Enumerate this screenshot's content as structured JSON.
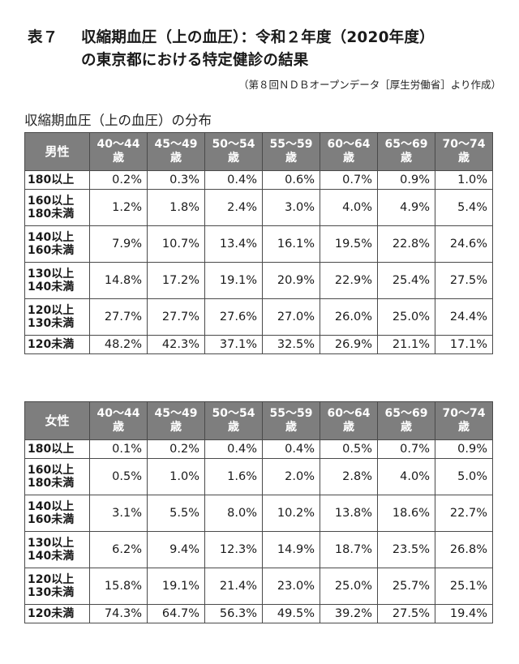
{
  "title": {
    "number": "表７",
    "line1": "収縮期血圧（上の血圧）：令和２年度（2020年度）",
    "line2": "の東京都における特定健診の結果"
  },
  "source": "（第８回ＮＤＢオープンデータ［厚生労働省］より作成）",
  "subtitle": "収縮期血圧（上の血圧）の分布",
  "age_groups": [
    "40～44",
    "45～49",
    "50～54",
    "55～59",
    "60～64",
    "65～69",
    "70～74"
  ],
  "age_suffix": "歳",
  "row_labels": [
    [
      "180以上"
    ],
    [
      "160以上",
      "180未満"
    ],
    [
      "140以上",
      "160未満"
    ],
    [
      "130以上",
      "140未満"
    ],
    [
      "120以上",
      "130未満"
    ],
    [
      "120未満"
    ]
  ],
  "male": {
    "label": "男性",
    "rows": [
      [
        "0.2%",
        "0.3%",
        "0.4%",
        "0.6%",
        "0.7%",
        "0.9%",
        "1.0%"
      ],
      [
        "1.2%",
        "1.8%",
        "2.4%",
        "3.0%",
        "4.0%",
        "4.9%",
        "5.4%"
      ],
      [
        "7.9%",
        "10.7%",
        "13.4%",
        "16.1%",
        "19.5%",
        "22.8%",
        "24.6%"
      ],
      [
        "14.8%",
        "17.2%",
        "19.1%",
        "20.9%",
        "22.9%",
        "25.4%",
        "27.5%"
      ],
      [
        "27.7%",
        "27.7%",
        "27.6%",
        "27.0%",
        "26.0%",
        "25.0%",
        "24.4%"
      ],
      [
        "48.2%",
        "42.3%",
        "37.1%",
        "32.5%",
        "26.9%",
        "21.1%",
        "17.1%"
      ]
    ]
  },
  "female": {
    "label": "女性",
    "rows": [
      [
        "0.1%",
        "0.2%",
        "0.4%",
        "0.4%",
        "0.5%",
        "0.7%",
        "0.9%"
      ],
      [
        "0.5%",
        "1.0%",
        "1.6%",
        "2.0%",
        "2.8%",
        "4.0%",
        "5.0%"
      ],
      [
        "3.1%",
        "5.5%",
        "8.0%",
        "10.2%",
        "13.8%",
        "18.6%",
        "22.7%"
      ],
      [
        "6.2%",
        "9.4%",
        "12.3%",
        "14.9%",
        "18.7%",
        "23.5%",
        "26.8%"
      ],
      [
        "15.8%",
        "19.1%",
        "21.4%",
        "23.0%",
        "25.0%",
        "25.7%",
        "25.1%"
      ],
      [
        "74.3%",
        "64.7%",
        "56.3%",
        "49.5%",
        "39.2%",
        "27.5%",
        "19.4%"
      ]
    ]
  },
  "colors": {
    "header_bg": "#7e7e7e",
    "header_text": "#ffffff",
    "border": "#4a4a4a"
  }
}
